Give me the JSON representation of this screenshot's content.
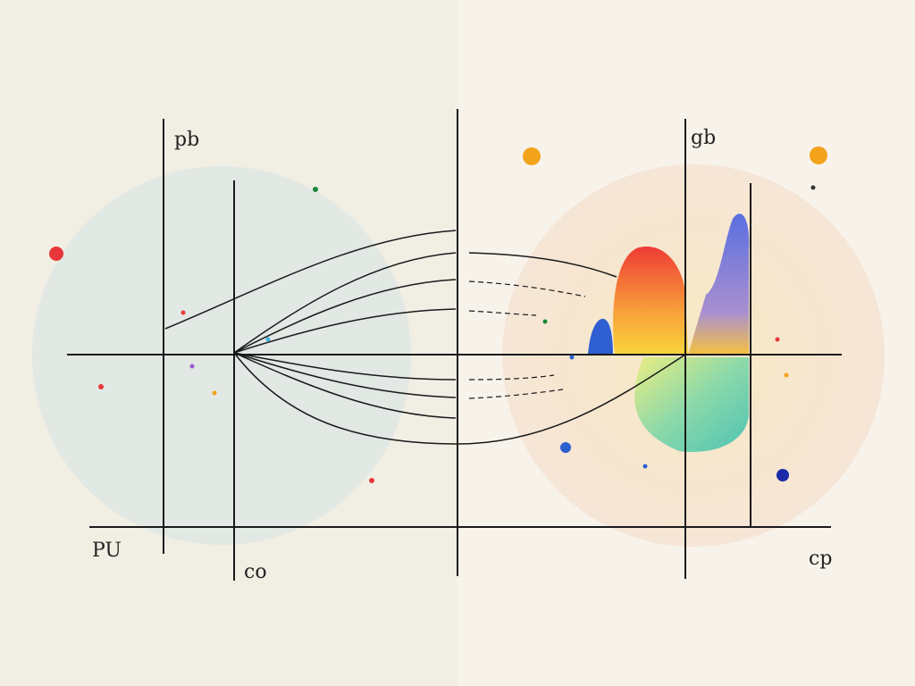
{
  "labels": {
    "top_left": "pb",
    "top_right": "gb",
    "bottom_left": "PU",
    "bottom_center": "co",
    "bottom_right": "cp"
  }
}
